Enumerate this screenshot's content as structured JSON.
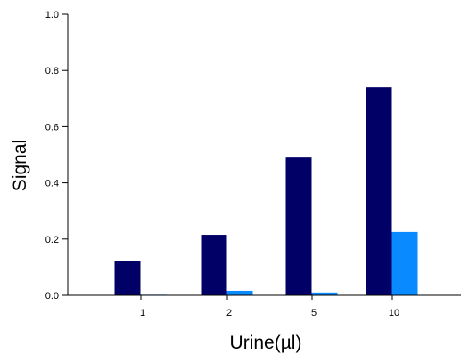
{
  "chart_data": {
    "type": "bar",
    "title": "",
    "xlabel": "Urine(µl)",
    "ylabel": "Signal",
    "categories": [
      "1",
      "2",
      "5",
      "10"
    ],
    "ylim": [
      0,
      1.0
    ],
    "yticks": [
      "0.0",
      "0.2",
      "0.4",
      "0.6",
      "0.8",
      "1.0"
    ],
    "grid": false,
    "legend": "none",
    "series": [
      {
        "values": [
          0.123,
          0.215,
          0.49,
          0.74
        ],
        "color": "#000066"
      },
      {
        "values": [
          0.002,
          0.016,
          0.01,
          0.225
        ],
        "color": "#0a8aff"
      }
    ]
  }
}
